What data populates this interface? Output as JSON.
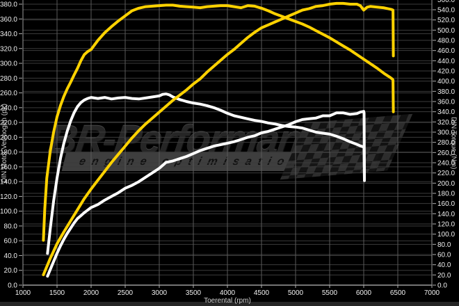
{
  "watermark": {
    "brand": "BR-Performance",
    "tagline": "engine optimisation"
  },
  "colors": {
    "tuned": "#ffd200",
    "stock": "#ffffff",
    "grid_h": "#3b3b3b",
    "grid_v": "#5a5a5a",
    "axis": "#9a9a9a",
    "tick": "#b0b0b0",
    "label": "#f0f0f0",
    "background": "#000000"
  },
  "chart_data": {
    "type": "line",
    "title": "",
    "x_axis": {
      "label": "Toerental (rpm)",
      "min": 1000,
      "max": 7000,
      "step": 500
    },
    "y_left": {
      "label": "DIN Motor Vermogen (pk)",
      "min": 0,
      "max": 380,
      "step": 20,
      "tick_format": "1dp"
    },
    "y_right": {
      "label": "DIN Torque (Nm)",
      "min": 0,
      "max": 560,
      "step": 20,
      "tick_format": "1dp"
    },
    "grid": "both-axes",
    "legend": "none",
    "series": [
      {
        "name": "torque-stock",
        "color": "#ffffff",
        "axis": "right",
        "points": [
          [
            1360,
            62
          ],
          [
            1400,
            110
          ],
          [
            1450,
            165
          ],
          [
            1500,
            210
          ],
          [
            1550,
            248
          ],
          [
            1600,
            278
          ],
          [
            1650,
            302
          ],
          [
            1700,
            322
          ],
          [
            1750,
            338
          ],
          [
            1800,
            350
          ],
          [
            1850,
            358
          ],
          [
            1900,
            363
          ],
          [
            1950,
            366
          ],
          [
            2000,
            368
          ],
          [
            2100,
            366
          ],
          [
            2200,
            368
          ],
          [
            2300,
            365
          ],
          [
            2400,
            367
          ],
          [
            2500,
            368
          ],
          [
            2600,
            366
          ],
          [
            2700,
            365
          ],
          [
            2800,
            367
          ],
          [
            2900,
            369
          ],
          [
            3000,
            371
          ],
          [
            3050,
            374
          ],
          [
            3100,
            375
          ],
          [
            3150,
            373
          ],
          [
            3200,
            369
          ],
          [
            3300,
            364
          ],
          [
            3400,
            360
          ],
          [
            3500,
            357
          ],
          [
            3600,
            355
          ],
          [
            3700,
            352
          ],
          [
            3800,
            348
          ],
          [
            3900,
            343
          ],
          [
            4000,
            337
          ],
          [
            4100,
            332
          ],
          [
            4200,
            329
          ],
          [
            4300,
            326
          ],
          [
            4400,
            323
          ],
          [
            4500,
            321
          ],
          [
            4600,
            318
          ],
          [
            4700,
            316
          ],
          [
            4800,
            313
          ],
          [
            4900,
            311
          ],
          [
            5000,
            310
          ],
          [
            5100,
            308
          ],
          [
            5200,
            304
          ],
          [
            5300,
            300
          ],
          [
            5400,
            298
          ],
          [
            5500,
            296
          ],
          [
            5600,
            292
          ],
          [
            5700,
            287
          ],
          [
            5800,
            281
          ],
          [
            5900,
            276
          ],
          [
            5950,
            273
          ],
          [
            6000,
            271
          ],
          [
            6005,
            268
          ],
          [
            6010,
            205
          ]
        ]
      },
      {
        "name": "power-stock",
        "color": "#ffffff",
        "axis": "left",
        "points": [
          [
            1360,
            12
          ],
          [
            1400,
            21
          ],
          [
            1450,
            32
          ],
          [
            1500,
            43
          ],
          [
            1550,
            53
          ],
          [
            1600,
            62
          ],
          [
            1650,
            70
          ],
          [
            1700,
            77
          ],
          [
            1750,
            84
          ],
          [
            1800,
            90
          ],
          [
            1850,
            94
          ],
          [
            1900,
            98
          ],
          [
            2000,
            105
          ],
          [
            2100,
            109
          ],
          [
            2200,
            115
          ],
          [
            2300,
            120
          ],
          [
            2400,
            125
          ],
          [
            2500,
            131
          ],
          [
            2600,
            135
          ],
          [
            2700,
            140
          ],
          [
            2800,
            146
          ],
          [
            2900,
            152
          ],
          [
            3000,
            158
          ],
          [
            3100,
            166
          ],
          [
            3200,
            168
          ],
          [
            3300,
            171
          ],
          [
            3400,
            174
          ],
          [
            3500,
            178
          ],
          [
            3600,
            182
          ],
          [
            3700,
            185
          ],
          [
            3800,
            188
          ],
          [
            3900,
            190
          ],
          [
            4000,
            192
          ],
          [
            4100,
            194
          ],
          [
            4200,
            197
          ],
          [
            4300,
            200
          ],
          [
            4400,
            202
          ],
          [
            4500,
            206
          ],
          [
            4600,
            208
          ],
          [
            4700,
            211
          ],
          [
            4800,
            214
          ],
          [
            4900,
            217
          ],
          [
            5000,
            221
          ],
          [
            5100,
            224
          ],
          [
            5200,
            225
          ],
          [
            5300,
            226
          ],
          [
            5400,
            229
          ],
          [
            5500,
            229
          ],
          [
            5600,
            233
          ],
          [
            5700,
            233
          ],
          [
            5800,
            231
          ],
          [
            5900,
            232
          ],
          [
            5950,
            234
          ],
          [
            6000,
            235
          ],
          [
            6005,
            233
          ],
          [
            6010,
            144
          ]
        ]
      },
      {
        "name": "torque-tuned",
        "color": "#ffd200",
        "axis": "right",
        "points": [
          [
            1300,
            88
          ],
          [
            1320,
            150
          ],
          [
            1350,
            210
          ],
          [
            1400,
            262
          ],
          [
            1450,
            300
          ],
          [
            1500,
            330
          ],
          [
            1550,
            352
          ],
          [
            1600,
            370
          ],
          [
            1650,
            385
          ],
          [
            1700,
            398
          ],
          [
            1750,
            412
          ],
          [
            1800,
            425
          ],
          [
            1850,
            440
          ],
          [
            1900,
            452
          ],
          [
            1950,
            458
          ],
          [
            2000,
            462
          ],
          [
            2100,
            480
          ],
          [
            2200,
            495
          ],
          [
            2300,
            507
          ],
          [
            2400,
            518
          ],
          [
            2500,
            528
          ],
          [
            2600,
            538
          ],
          [
            2700,
            543
          ],
          [
            2800,
            546
          ],
          [
            2900,
            547
          ],
          [
            3000,
            548
          ],
          [
            3100,
            549
          ],
          [
            3200,
            549
          ],
          [
            3300,
            547
          ],
          [
            3400,
            546
          ],
          [
            3500,
            545
          ],
          [
            3600,
            544
          ],
          [
            3700,
            546
          ],
          [
            3800,
            547
          ],
          [
            3900,
            548
          ],
          [
            4000,
            548
          ],
          [
            4100,
            546
          ],
          [
            4200,
            544
          ],
          [
            4300,
            548
          ],
          [
            4400,
            547
          ],
          [
            4500,
            543
          ],
          [
            4600,
            538
          ],
          [
            4700,
            532
          ],
          [
            4800,
            527
          ],
          [
            4900,
            522
          ],
          [
            5000,
            517
          ],
          [
            5100,
            512
          ],
          [
            5200,
            506
          ],
          [
            5300,
            499
          ],
          [
            5400,
            492
          ],
          [
            5500,
            485
          ],
          [
            5600,
            477
          ],
          [
            5700,
            469
          ],
          [
            5800,
            461
          ],
          [
            5900,
            452
          ],
          [
            6000,
            443
          ],
          [
            6100,
            434
          ],
          [
            6200,
            425
          ],
          [
            6300,
            415
          ],
          [
            6380,
            408
          ],
          [
            6420,
            404
          ],
          [
            6430,
            402
          ],
          [
            6435,
            340
          ]
        ]
      },
      {
        "name": "power-tuned",
        "color": "#ffd200",
        "axis": "left",
        "points": [
          [
            1300,
            14
          ],
          [
            1350,
            25
          ],
          [
            1400,
            36
          ],
          [
            1450,
            46
          ],
          [
            1500,
            56
          ],
          [
            1600,
            72
          ],
          [
            1700,
            87
          ],
          [
            1800,
            102
          ],
          [
            1900,
            117
          ],
          [
            2000,
            130
          ],
          [
            2100,
            142
          ],
          [
            2200,
            154
          ],
          [
            2300,
            166
          ],
          [
            2400,
            177
          ],
          [
            2500,
            188
          ],
          [
            2600,
            199
          ],
          [
            2700,
            209
          ],
          [
            2800,
            218
          ],
          [
            2900,
            226
          ],
          [
            3000,
            234
          ],
          [
            3100,
            242
          ],
          [
            3200,
            250
          ],
          [
            3300,
            257
          ],
          [
            3400,
            264
          ],
          [
            3500,
            272
          ],
          [
            3600,
            279
          ],
          [
            3700,
            288
          ],
          [
            3800,
            296
          ],
          [
            3900,
            304
          ],
          [
            4000,
            312
          ],
          [
            4100,
            319
          ],
          [
            4200,
            327
          ],
          [
            4300,
            335
          ],
          [
            4400,
            342
          ],
          [
            4500,
            348
          ],
          [
            4600,
            352
          ],
          [
            4700,
            356
          ],
          [
            4800,
            360
          ],
          [
            4900,
            364
          ],
          [
            5000,
            368
          ],
          [
            5100,
            372
          ],
          [
            5200,
            374
          ],
          [
            5300,
            377
          ],
          [
            5400,
            378
          ],
          [
            5500,
            380
          ],
          [
            5600,
            381
          ],
          [
            5700,
            381
          ],
          [
            5800,
            380
          ],
          [
            5900,
            380
          ],
          [
            5950,
            378
          ],
          [
            6000,
            372
          ],
          [
            6050,
            376
          ],
          [
            6100,
            377
          ],
          [
            6200,
            376
          ],
          [
            6300,
            375
          ],
          [
            6400,
            373
          ],
          [
            6430,
            372
          ],
          [
            6435,
            310
          ]
        ]
      }
    ]
  }
}
